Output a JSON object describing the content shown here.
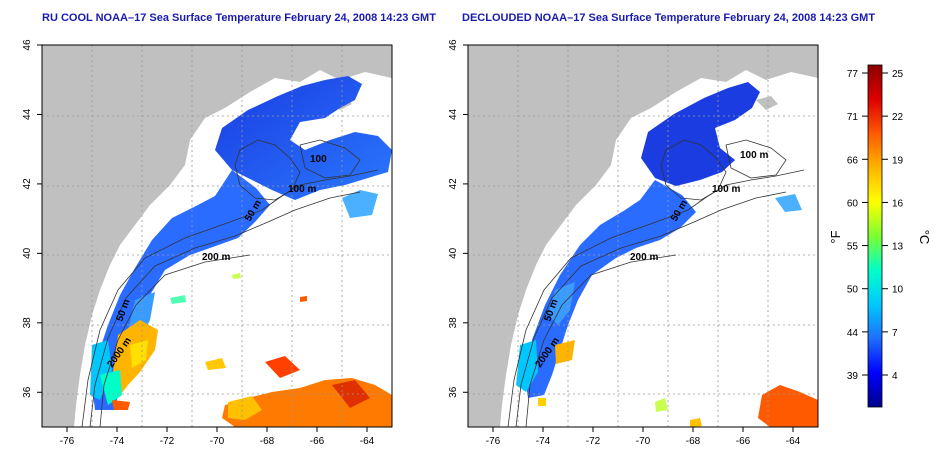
{
  "panels": [
    {
      "title": "RU COOL NOAA–17 Sea Surface Temperature February 24, 2008 14:23 GMT"
    },
    {
      "title": "DECLOUDED NOAA–17 Sea Surface Temperature February 24, 2008 14:23 GMT"
    }
  ],
  "axes": {
    "lon_ticks": [
      "-76",
      "-74",
      "-72",
      "-70",
      "-68",
      "-66",
      "-64"
    ],
    "lat_ticks": [
      "46",
      "44",
      "42",
      "40",
      "38",
      "36"
    ],
    "lon_range": [
      -77,
      -63
    ],
    "lat_range": [
      35,
      46
    ]
  },
  "contours": {
    "panel1": [
      "100",
      "100 m",
      "50 m",
      "200 m",
      "50 m",
      "2000 m"
    ],
    "panel2": [
      "100 m",
      "100 m",
      "50 m",
      "200 m",
      "50 m",
      "2000 m"
    ]
  },
  "colorbar": {
    "f_label": "°F",
    "c_label": "°C",
    "f_ticks": [
      "77",
      "71",
      "66",
      "60",
      "55",
      "50",
      "44",
      "39"
    ],
    "c_ticks": [
      "25",
      "22",
      "19",
      "16",
      "13",
      "10",
      "7",
      "4"
    ],
    "colors": [
      "#00008b",
      "#0000ff",
      "#1e6eff",
      "#00c8ff",
      "#00ffc8",
      "#7dff32",
      "#ffff00",
      "#ffb400",
      "#ff5a00",
      "#dc0000",
      "#8b0000"
    ]
  },
  "colors": {
    "land": "#c0c0c0",
    "ocean": "#ffffff",
    "title": "#1a1ab0"
  }
}
